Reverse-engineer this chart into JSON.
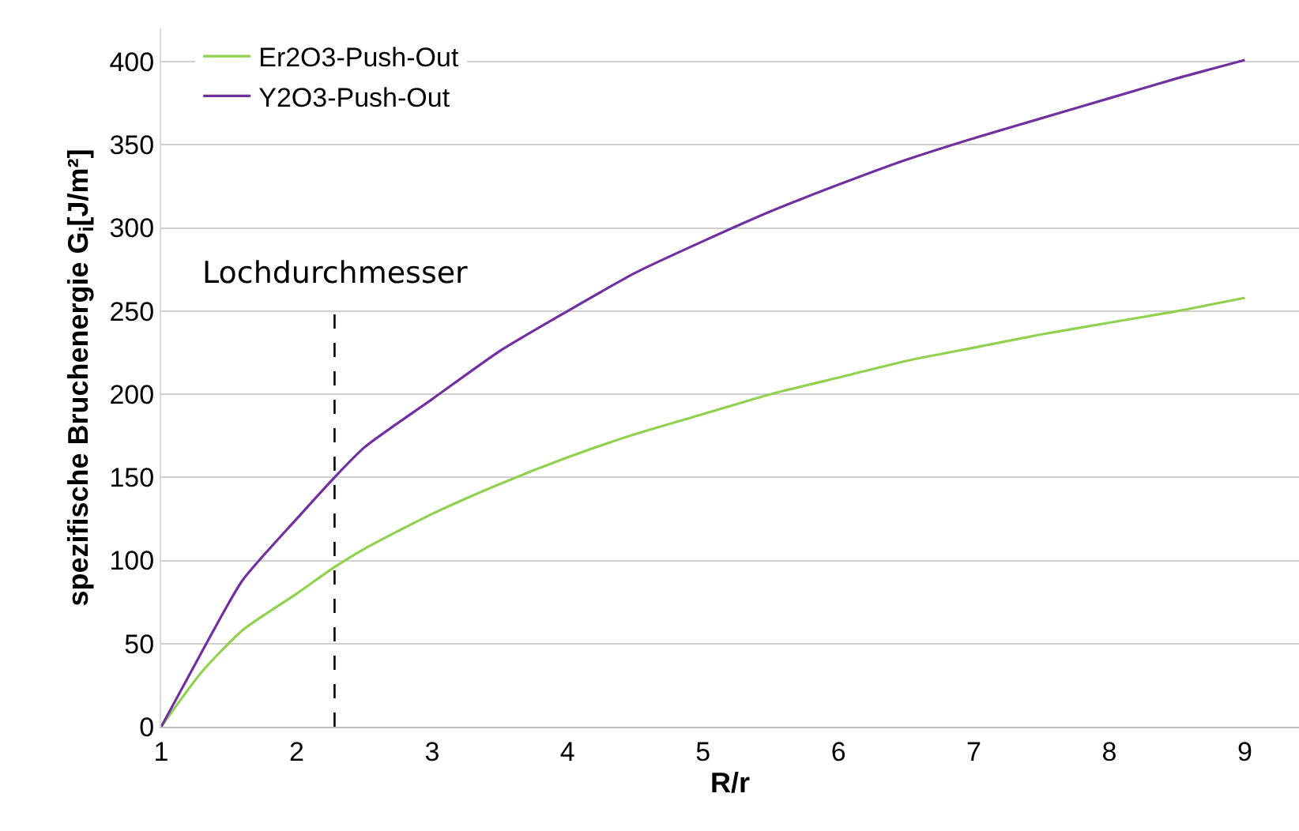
{
  "chart_data": {
    "type": "line",
    "xlabel": "R/r",
    "ylabel": "spezifische Bruchenergie G$_{i}$[J/m²]",
    "xlim": [
      1,
      9.4
    ],
    "xticks": [
      1,
      2,
      3,
      4,
      5,
      6,
      7,
      8,
      9
    ],
    "ylim": [
      0,
      420
    ],
    "yticks": [
      0,
      50,
      100,
      150,
      200,
      250,
      300,
      350,
      400
    ],
    "grid": "y",
    "legend": "top left",
    "line_style": "solid",
    "marker": "none",
    "series": [
      {
        "name": "Er2O3-Push-Out",
        "color": "#92d050",
        "x": [
          1,
          1.3,
          1.6,
          2,
          2.28,
          2.5,
          3,
          3.5,
          4,
          4.5,
          5,
          5.5,
          6,
          6.5,
          7,
          7.5,
          8,
          8.5,
          9
        ],
        "values": [
          0,
          33,
          58,
          80,
          96,
          107,
          128,
          146,
          162,
          176,
          188,
          200,
          210,
          220,
          228,
          236,
          243,
          250,
          258
        ]
      },
      {
        "name": "Y2O3-Push-Out",
        "color": "#7030a0",
        "x": [
          1,
          1.3,
          1.6,
          2,
          2.28,
          2.5,
          3,
          3.5,
          4,
          4.5,
          5,
          5.5,
          6,
          6.5,
          7,
          7.5,
          8,
          8.5,
          9
        ],
        "values": [
          0,
          45,
          88,
          125,
          150,
          168,
          197,
          226,
          250,
          273,
          292,
          310,
          326,
          341,
          354,
          366,
          378,
          390,
          401
        ]
      }
    ],
    "ref_lines": [
      {
        "axis": "x",
        "value": 2.28,
        "label": "Lochdurchmesser",
        "color": "#000000",
        "line_style": "dashed"
      }
    ]
  }
}
